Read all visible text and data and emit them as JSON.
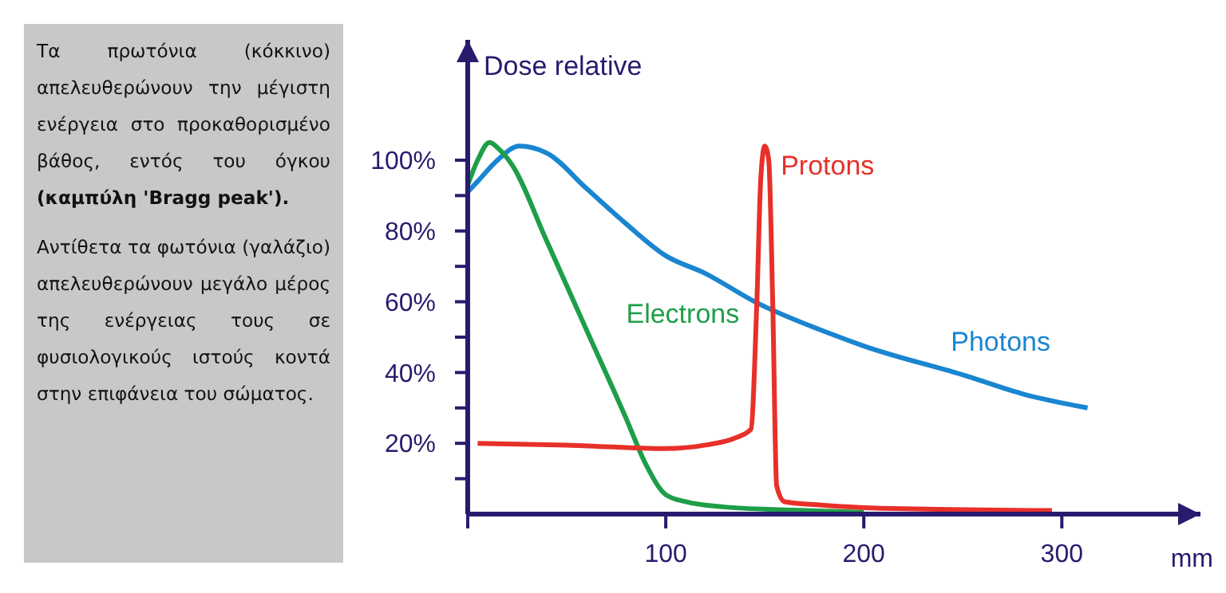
{
  "chart_data": {
    "type": "line",
    "ylabel": "Dose relative",
    "xlabel": "mm",
    "xlim": [
      0,
      370
    ],
    "ylim": [
      0,
      134
    ],
    "xticks": [
      {
        "value": 0,
        "label": null
      },
      100,
      200,
      300
    ],
    "yticks": [
      {
        "value": 10,
        "label": null
      },
      {
        "value": 20,
        "label": "20%"
      },
      {
        "value": 30,
        "label": null
      },
      {
        "value": 40,
        "label": "40%"
      },
      {
        "value": 50,
        "label": null
      },
      {
        "value": 60,
        "label": "60%"
      },
      {
        "value": 70,
        "label": null
      },
      {
        "value": 80,
        "label": "80%"
      },
      {
        "value": 90,
        "label": null
      },
      {
        "value": 100,
        "label": "100%"
      }
    ],
    "grid": false,
    "legend": false,
    "marker": "none",
    "line_style": "solid",
    "series": [
      {
        "name": "Photons",
        "color": "#1a85d0",
        "x": [
          0,
          5,
          15,
          26,
          40,
          60,
          80,
          100,
          120,
          145,
          183,
          200,
          252,
          280,
          313
        ],
        "values": [
          91,
          94,
          100,
          104,
          102,
          92,
          82,
          73,
          68,
          60,
          51,
          47.5,
          39,
          34,
          30
        ]
      },
      {
        "name": "Electrons",
        "color": "#1e9e48",
        "x": [
          0,
          5,
          11,
          16,
          22,
          40,
          60,
          80,
          90,
          100,
          110,
          130,
          160,
          200
        ],
        "values": [
          93,
          100,
          105,
          103,
          99,
          77,
          52,
          27,
          14,
          5.5,
          3.5,
          2,
          1.2,
          0.5
        ]
      },
      {
        "name": "Protons",
        "color": "#e8302a",
        "x": [
          5,
          50,
          100,
          120,
          135,
          143,
          146,
          148,
          150,
          152,
          154,
          156,
          160,
          180,
          220,
          295
        ],
        "values": [
          20,
          19.5,
          18.5,
          19.5,
          21.5,
          24,
          60,
          95,
          104,
          100,
          60,
          8,
          3.5,
          2.5,
          1.5,
          1
        ]
      }
    ],
    "annotations": [
      "Τα πρωτόνια (κόκκινο) απελευθερώνουν την μέγιστη ενέργεια στο προκαθορισμένο βάθος, εντός του όγκου",
      "(καμπύλη 'Bragg peak').",
      "Αντίθετα τα φωτόνια (γαλάζιο) απελευθερώνουν μεγάλο μέρος της ενέργειας τους σε φυσιολογικούς ιστούς κοντά στην επιφάνεια του σώματος."
    ]
  }
}
